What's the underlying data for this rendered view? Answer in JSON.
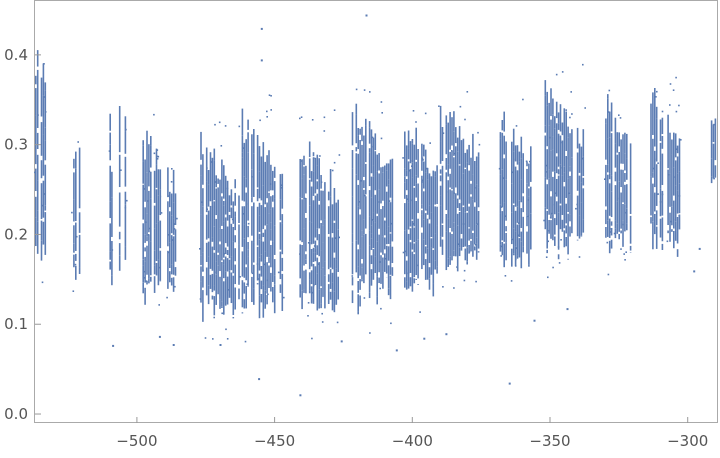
{
  "chart_data": {
    "type": "scatter",
    "title": "",
    "xlabel": "",
    "ylabel": "",
    "xlim": [
      -537,
      -289
    ],
    "ylim": [
      -0.01,
      0.46
    ],
    "x_ticks": [
      {
        "value": -500,
        "label": "−500"
      },
      {
        "value": -450,
        "label": "−450"
      },
      {
        "value": -400,
        "label": "−400"
      },
      {
        "value": -350,
        "label": "−350"
      },
      {
        "value": -300,
        "label": "−300"
      }
    ],
    "y_ticks": [
      {
        "value": 0.0,
        "label": "0.0"
      },
      {
        "value": 0.1,
        "label": "0.1"
      },
      {
        "value": 0.2,
        "label": "0.2"
      },
      {
        "value": 0.3,
        "label": "0.3"
      },
      {
        "value": 0.4,
        "label": "0.4"
      }
    ],
    "grid": false,
    "legend": "none",
    "point_color": "#5b7cb3",
    "series": [
      {
        "clusters": [
          {
            "x_start": -537,
            "x_end": -531,
            "y_low": 0.14,
            "y_high": 0.41,
            "y_center": 0.26,
            "density": 0.35,
            "skew": 0.0
          },
          {
            "x_start": -528,
            "x_end": -505,
            "y_low": 0.14,
            "y_high": 0.3,
            "y_center": 0.2,
            "density": 0.12,
            "skew": 0.0
          },
          {
            "x_start": -510,
            "x_end": -502,
            "y_low": 0.15,
            "y_high": 0.36,
            "y_center": 0.22,
            "density": 0.18,
            "skew": 0.0
          },
          {
            "x_start": -498,
            "x_end": -485,
            "y_low": 0.12,
            "y_high": 0.33,
            "y_center": 0.2,
            "density": 0.6,
            "skew": -0.6
          },
          {
            "x_start": -477,
            "x_end": -463,
            "y_low": 0.1,
            "y_high": 0.32,
            "y_center": 0.19,
            "density": 0.65,
            "skew": -0.6
          },
          {
            "x_start": -462,
            "x_end": -447,
            "y_low": 0.1,
            "y_high": 0.35,
            "y_center": 0.21,
            "density": 0.65,
            "skew": -0.6
          },
          {
            "x_start": -441,
            "x_end": -427,
            "y_low": 0.1,
            "y_high": 0.33,
            "y_center": 0.19,
            "density": 0.7,
            "skew": -0.6
          },
          {
            "x_start": -422,
            "x_end": -407,
            "y_low": 0.11,
            "y_high": 0.36,
            "y_center": 0.22,
            "density": 0.8,
            "skew": -0.6
          },
          {
            "x_start": -403,
            "x_end": -391,
            "y_low": 0.12,
            "y_high": 0.34,
            "y_center": 0.22,
            "density": 0.7,
            "skew": -0.6
          },
          {
            "x_start": -390,
            "x_end": -376,
            "y_low": 0.15,
            "y_high": 0.36,
            "y_center": 0.24,
            "density": 0.8,
            "skew": -0.6
          },
          {
            "x_start": -369,
            "x_end": -357,
            "y_low": 0.15,
            "y_high": 0.35,
            "y_center": 0.24,
            "density": 0.75,
            "skew": -0.6
          },
          {
            "x_start": -352,
            "x_end": -338,
            "y_low": 0.17,
            "y_high": 0.38,
            "y_center": 0.26,
            "density": 0.75,
            "skew": -0.6
          },
          {
            "x_start": -330,
            "x_end": -321,
            "y_low": 0.17,
            "y_high": 0.36,
            "y_center": 0.26,
            "density": 0.6,
            "skew": -0.6
          },
          {
            "x_start": -315,
            "x_end": -303,
            "y_low": 0.17,
            "y_high": 0.38,
            "y_center": 0.27,
            "density": 0.65,
            "skew": -0.6
          },
          {
            "x_start": -293,
            "x_end": -289,
            "y_low": 0.25,
            "y_high": 0.33,
            "y_center": 0.29,
            "density": 0.5,
            "skew": 0.0
          }
        ],
        "outliers": [
          {
            "x": -417,
            "y": 0.445
          },
          {
            "x": -455,
            "y": 0.43
          },
          {
            "x": -455,
            "y": 0.395
          },
          {
            "x": -441,
            "y": 0.022
          },
          {
            "x": -456,
            "y": 0.04
          },
          {
            "x": -365,
            "y": 0.035
          },
          {
            "x": -509,
            "y": 0.077
          },
          {
            "x": -492,
            "y": 0.087
          },
          {
            "x": -487,
            "y": 0.078
          },
          {
            "x": -470,
            "y": 0.078
          },
          {
            "x": -426,
            "y": 0.082
          },
          {
            "x": -406,
            "y": 0.072
          },
          {
            "x": -396,
            "y": 0.085
          },
          {
            "x": -388,
            "y": 0.09
          },
          {
            "x": -356,
            "y": 0.105
          },
          {
            "x": -344,
            "y": 0.118
          },
          {
            "x": -298,
            "y": 0.16
          },
          {
            "x": -296,
            "y": 0.185
          }
        ]
      }
    ]
  }
}
